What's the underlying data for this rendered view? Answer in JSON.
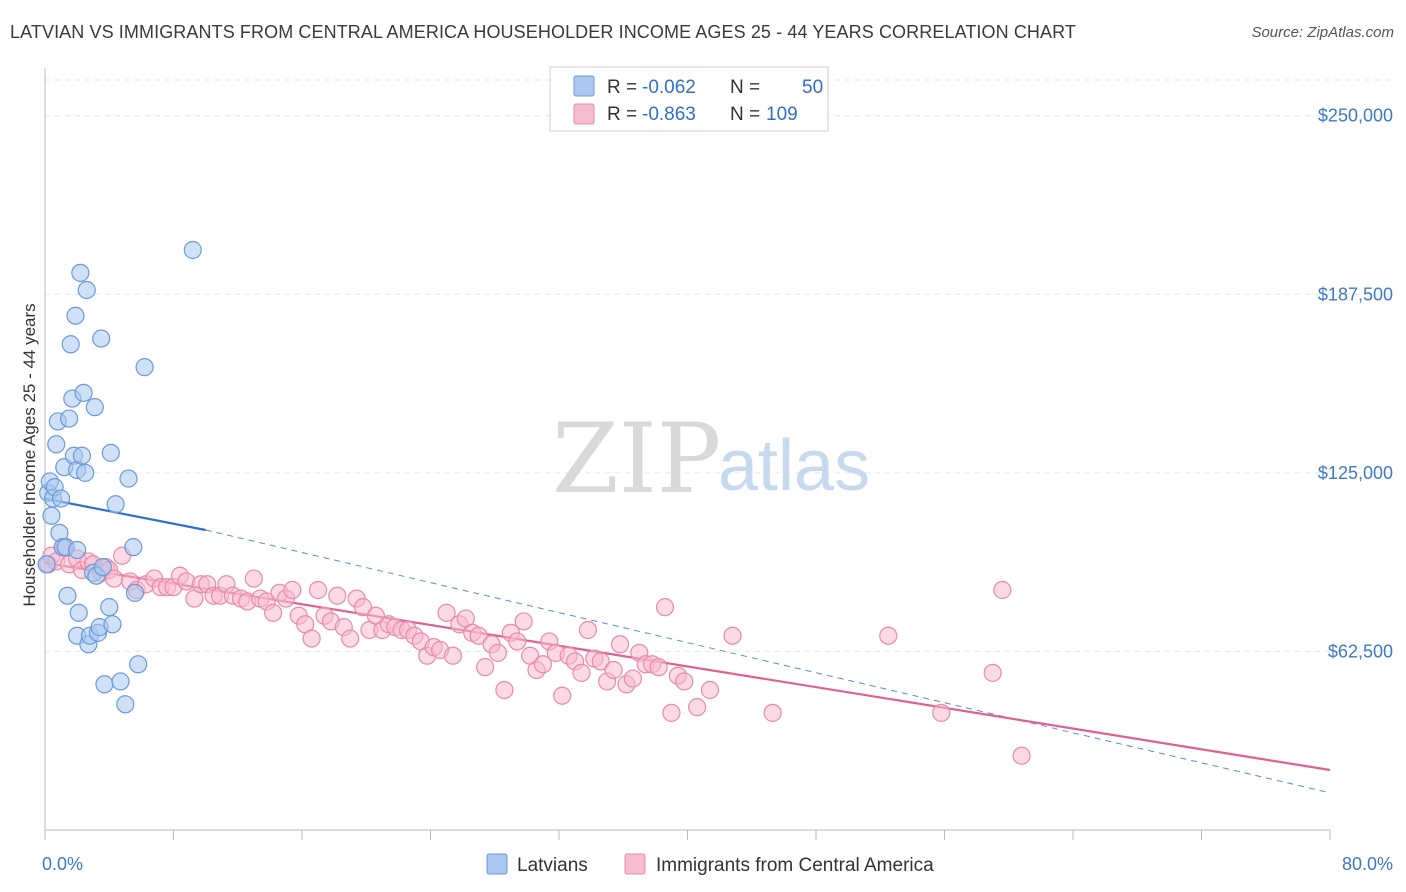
{
  "title": "LATVIAN VS IMMIGRANTS FROM CENTRAL AMERICA HOUSEHOLDER INCOME AGES 25 - 44 YEARS CORRELATION CHART",
  "source": "Source: ZipAtlas.com",
  "watermark": {
    "zip": "ZIP",
    "atlas": "atlas"
  },
  "colors": {
    "latvians_fill": "#aac8f0",
    "latvians_stroke": "#6a9ad8",
    "latvians_line": "#2f6fd0",
    "immigrants_fill": "#f7bcd0",
    "immigrants_stroke": "#e88aaa",
    "immigrants_line": "#e06090",
    "tick_text": "#3f79c4",
    "grid": "#e6e6e6"
  },
  "legend": {
    "rows": [
      {
        "r_label": "R = ",
        "r_value": "-0.062",
        "n_label": "N = ",
        "n_value": "50"
      },
      {
        "r_label": "R = ",
        "r_value": "-0.863",
        "n_label": "N = ",
        "n_value": "109"
      }
    ]
  },
  "chart_data": {
    "type": "scatter",
    "title": "LATVIAN VS IMMIGRANTS FROM CENTRAL AMERICA HOUSEHOLDER INCOME AGES 25 - 44 YEARS CORRELATION CHART",
    "xlabel": "",
    "ylabel": "Householder Income Ages 25 - 44 years",
    "xlim": [
      0,
      80
    ],
    "ylim": [
      0,
      262500
    ],
    "x_tick_labels": [
      "0.0%",
      "80.0%"
    ],
    "y_ticks": [
      62500,
      125000,
      187500,
      250000
    ],
    "y_tick_labels": [
      "$62,500",
      "$125,000",
      "$187,500",
      "$250,000"
    ],
    "grid": "horizontal dashed",
    "legend_position": "top-center",
    "series": [
      {
        "name": "Latvians",
        "points": [
          [
            0.1,
            93000
          ],
          [
            0.2,
            118000
          ],
          [
            0.3,
            122000
          ],
          [
            0.4,
            110000
          ],
          [
            0.5,
            116000
          ],
          [
            0.6,
            120000
          ],
          [
            0.7,
            135000
          ],
          [
            0.8,
            143000
          ],
          [
            0.9,
            104000
          ],
          [
            1.0,
            116000
          ],
          [
            1.1,
            99000
          ],
          [
            1.2,
            127000
          ],
          [
            1.3,
            99000
          ],
          [
            1.4,
            82000
          ],
          [
            1.5,
            144000
          ],
          [
            1.6,
            170000
          ],
          [
            1.7,
            151000
          ],
          [
            1.8,
            131000
          ],
          [
            1.9,
            180000
          ],
          [
            2.0,
            98000
          ],
          [
            2.0,
            68000
          ],
          [
            2.0,
            126000
          ],
          [
            2.1,
            76000
          ],
          [
            2.2,
            195000
          ],
          [
            2.3,
            131000
          ],
          [
            2.4,
            153000
          ],
          [
            2.5,
            125000
          ],
          [
            2.6,
            189000
          ],
          [
            2.7,
            65000
          ],
          [
            2.8,
            68000
          ],
          [
            3.0,
            90000
          ],
          [
            3.1,
            148000
          ],
          [
            3.2,
            89000
          ],
          [
            3.3,
            69000
          ],
          [
            3.4,
            71000
          ],
          [
            3.5,
            172000
          ],
          [
            3.6,
            92000
          ],
          [
            3.7,
            51000
          ],
          [
            4.0,
            78000
          ],
          [
            4.1,
            132000
          ],
          [
            4.2,
            72000
          ],
          [
            4.4,
            114000
          ],
          [
            4.7,
            52000
          ],
          [
            5.0,
            44000
          ],
          [
            5.2,
            123000
          ],
          [
            5.6,
            83000
          ],
          [
            5.8,
            58000
          ],
          [
            6.2,
            162000
          ],
          [
            9.2,
            203000
          ],
          [
            5.5,
            99000
          ]
        ],
        "trend": {
          "x": [
            0,
            10
          ],
          "y": [
            116000,
            105000
          ],
          "dashed_to": [
            80,
            13000
          ]
        }
      },
      {
        "name": "Immigrants from Central America",
        "points": [
          [
            0.2,
            93000
          ],
          [
            0.4,
            96000
          ],
          [
            0.7,
            94000
          ],
          [
            1.2,
            99000
          ],
          [
            1.5,
            93000
          ],
          [
            2.0,
            95000
          ],
          [
            2.3,
            91000
          ],
          [
            2.7,
            94000
          ],
          [
            3.0,
            93000
          ],
          [
            3.5,
            90000
          ],
          [
            3.8,
            92000
          ],
          [
            4.0,
            91000
          ],
          [
            4.3,
            88000
          ],
          [
            4.8,
            96000
          ],
          [
            5.3,
            87000
          ],
          [
            5.7,
            84000
          ],
          [
            6.3,
            86000
          ],
          [
            6.8,
            88000
          ],
          [
            7.2,
            85000
          ],
          [
            7.6,
            85000
          ],
          [
            8.0,
            85000
          ],
          [
            8.4,
            89000
          ],
          [
            8.8,
            87000
          ],
          [
            9.3,
            81000
          ],
          [
            9.7,
            86000
          ],
          [
            10.1,
            86000
          ],
          [
            10.5,
            82000
          ],
          [
            10.9,
            82000
          ],
          [
            11.3,
            86000
          ],
          [
            11.7,
            82000
          ],
          [
            12.2,
            81000
          ],
          [
            12.6,
            80000
          ],
          [
            13.0,
            88000
          ],
          [
            13.4,
            81000
          ],
          [
            13.8,
            80000
          ],
          [
            14.2,
            76000
          ],
          [
            14.6,
            83000
          ],
          [
            15.0,
            81000
          ],
          [
            15.4,
            84000
          ],
          [
            15.8,
            75000
          ],
          [
            16.2,
            72000
          ],
          [
            16.6,
            67000
          ],
          [
            17.0,
            84000
          ],
          [
            17.4,
            75000
          ],
          [
            17.8,
            73000
          ],
          [
            18.2,
            82000
          ],
          [
            18.6,
            71000
          ],
          [
            19.0,
            67000
          ],
          [
            19.4,
            81000
          ],
          [
            19.8,
            78000
          ],
          [
            20.2,
            70000
          ],
          [
            20.6,
            75000
          ],
          [
            21.0,
            70000
          ],
          [
            21.4,
            72000
          ],
          [
            21.8,
            71000
          ],
          [
            22.2,
            70000
          ],
          [
            22.6,
            70000
          ],
          [
            23.0,
            68000
          ],
          [
            23.4,
            66000
          ],
          [
            23.8,
            61000
          ],
          [
            24.2,
            64000
          ],
          [
            24.6,
            63000
          ],
          [
            25.0,
            76000
          ],
          [
            25.4,
            61000
          ],
          [
            25.8,
            72000
          ],
          [
            26.2,
            74000
          ],
          [
            26.6,
            69000
          ],
          [
            27.0,
            68000
          ],
          [
            27.4,
            57000
          ],
          [
            27.8,
            65000
          ],
          [
            28.2,
            62000
          ],
          [
            28.6,
            49000
          ],
          [
            29.0,
            69000
          ],
          [
            29.4,
            66000
          ],
          [
            29.8,
            73000
          ],
          [
            30.2,
            61000
          ],
          [
            30.6,
            56000
          ],
          [
            31.0,
            58000
          ],
          [
            31.4,
            66000
          ],
          [
            31.8,
            62000
          ],
          [
            32.2,
            47000
          ],
          [
            32.6,
            61000
          ],
          [
            33.0,
            59000
          ],
          [
            33.4,
            55000
          ],
          [
            33.8,
            70000
          ],
          [
            34.2,
            60000
          ],
          [
            34.6,
            59000
          ],
          [
            35.0,
            52000
          ],
          [
            35.4,
            56000
          ],
          [
            35.8,
            65000
          ],
          [
            36.2,
            51000
          ],
          [
            36.6,
            53000
          ],
          [
            37.0,
            62000
          ],
          [
            37.4,
            58000
          ],
          [
            37.8,
            58000
          ],
          [
            38.2,
            57000
          ],
          [
            38.6,
            78000
          ],
          [
            39.0,
            41000
          ],
          [
            39.4,
            54000
          ],
          [
            39.8,
            52000
          ],
          [
            40.6,
            43000
          ],
          [
            41.4,
            49000
          ],
          [
            42.8,
            68000
          ],
          [
            45.3,
            41000
          ],
          [
            52.5,
            68000
          ],
          [
            55.8,
            41000
          ],
          [
            59.0,
            55000
          ],
          [
            59.6,
            84000
          ],
          [
            60.8,
            26000
          ]
        ],
        "trend": {
          "x": [
            0,
            80
          ],
          "y": [
            93500,
            21000
          ]
        }
      }
    ]
  },
  "bottom_legend": [
    "Latvians",
    "Immigrants from Central America"
  ]
}
